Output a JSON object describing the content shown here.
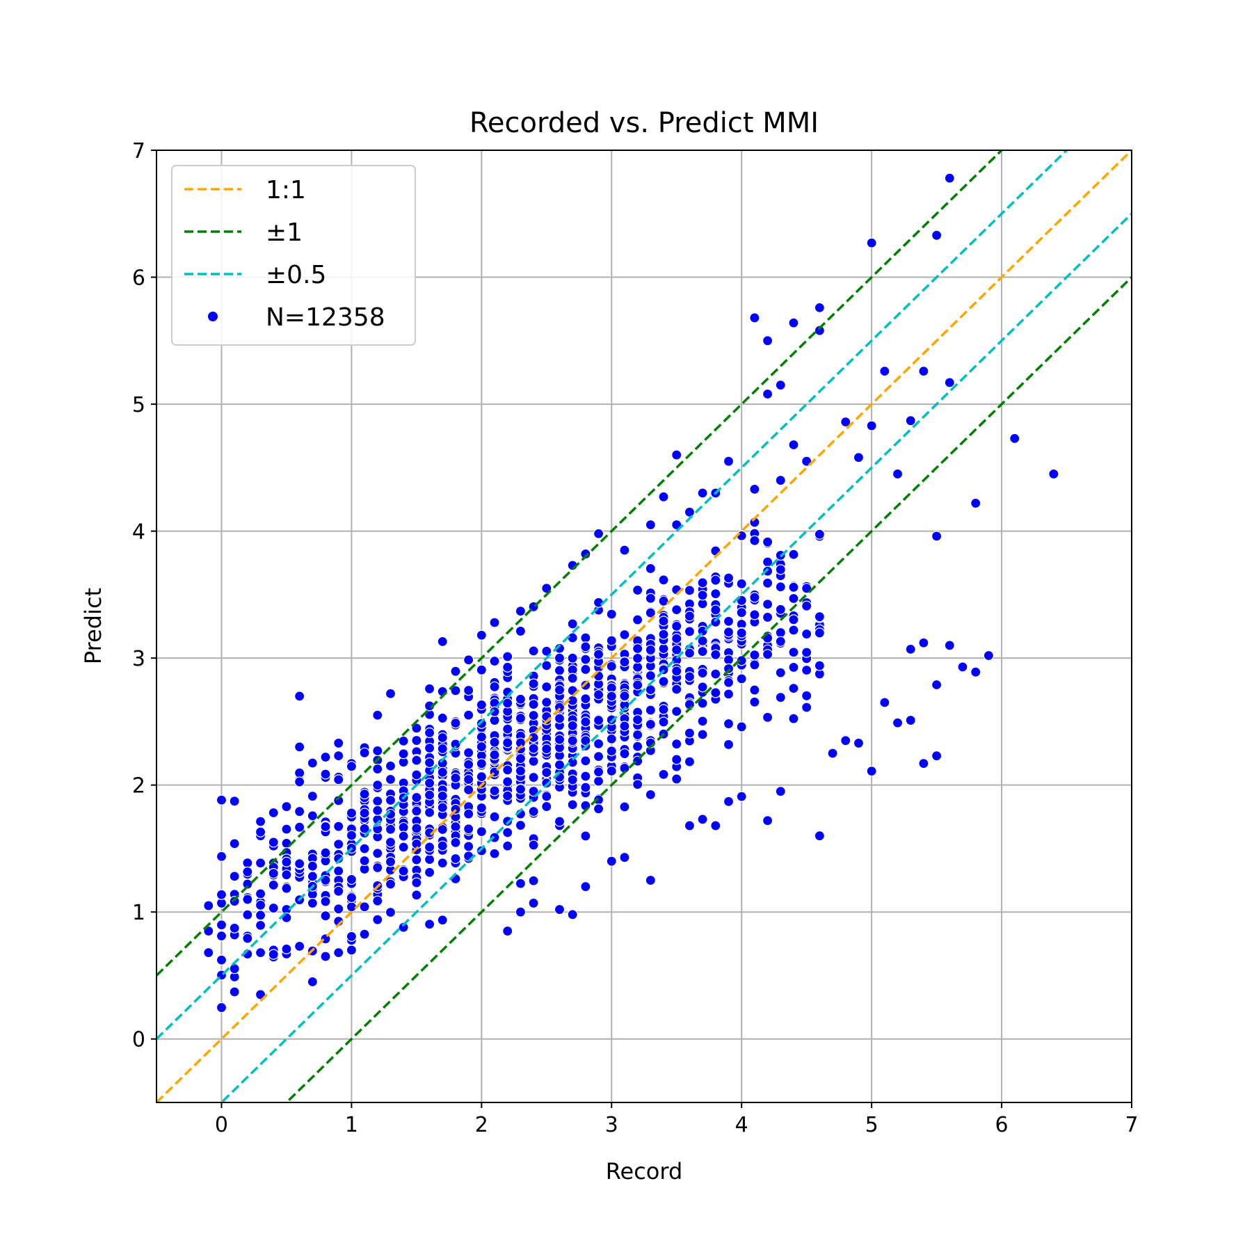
{
  "chart_data": {
    "type": "scatter",
    "title": "Recorded vs. Predict MMI",
    "xlabel": "Record",
    "ylabel": "Predict",
    "xlim": [
      -0.5,
      7
    ],
    "ylim": [
      -0.5,
      7
    ],
    "xticks": [
      "0",
      "1",
      "2",
      "3",
      "4",
      "5",
      "6",
      "7"
    ],
    "yticks": [
      "0",
      "1",
      "2",
      "3",
      "4",
      "5",
      "6",
      "7"
    ],
    "grid": true,
    "legend_position": "top-left",
    "lines": [
      {
        "name": "1:1",
        "offset": 0,
        "color": "#ffa500",
        "style": "dashed"
      },
      {
        "name": "±1",
        "offset": 1,
        "color": "#008000",
        "style": "dashed"
      },
      {
        "name": "±1",
        "offset": -1,
        "color": "#008000",
        "style": "dashed"
      },
      {
        "name": "±0.5",
        "offset": 0.5,
        "color": "#00bfbf",
        "style": "dashed"
      },
      {
        "name": "±0.5",
        "offset": -0.5,
        "color": "#00bfbf",
        "style": "dashed"
      }
    ],
    "legend": [
      {
        "label": "1:1",
        "kind": "line",
        "color": "#ffa500"
      },
      {
        "label": "±1",
        "kind": "line",
        "color": "#008000"
      },
      {
        "label": "±0.5",
        "kind": "line",
        "color": "#00bfbf"
      },
      {
        "label": "N=12358",
        "kind": "marker",
        "color": "#0000ff"
      }
    ],
    "series": [
      {
        "name": "N=12358",
        "color": "#0000ff",
        "points": [
          [
            -0.1,
            0.68
          ],
          [
            -0.1,
            0.85
          ],
          [
            -0.1,
            1.05
          ],
          [
            0.0,
            1.07
          ],
          [
            0.1,
            0.82
          ],
          [
            0.2,
            0.8
          ],
          [
            0.2,
            1.22
          ],
          [
            0.3,
            0.68
          ],
          [
            0.3,
            1.6
          ],
          [
            0.3,
            1.63
          ],
          [
            0.4,
            1.52
          ],
          [
            0.4,
            0.7
          ],
          [
            0.5,
            1.83
          ],
          [
            0.5,
            0.67
          ],
          [
            0.6,
            2.7
          ],
          [
            0.6,
            2.3
          ],
          [
            0.6,
            2.04
          ],
          [
            0.6,
            0.73
          ],
          [
            0.7,
            1.75
          ],
          [
            0.8,
            2.22
          ],
          [
            0.8,
            2.06
          ],
          [
            0.8,
            0.65
          ],
          [
            0.9,
            2.33
          ],
          [
            0.9,
            0.68
          ],
          [
            1.0,
            0.7
          ],
          [
            1.2,
            2.55
          ],
          [
            1.3,
            2.72
          ],
          [
            1.7,
            3.13
          ],
          [
            2.0,
            3.18
          ],
          [
            2.1,
            3.28
          ],
          [
            2.2,
            0.85
          ],
          [
            2.3,
            3.37
          ],
          [
            2.3,
            1.0
          ],
          [
            2.4,
            1.07
          ],
          [
            2.5,
            3.55
          ],
          [
            2.6,
            1.02
          ],
          [
            2.7,
            3.73
          ],
          [
            2.7,
            0.98
          ],
          [
            2.8,
            3.82
          ],
          [
            2.8,
            1.2
          ],
          [
            2.9,
            3.98
          ],
          [
            3.0,
            1.4
          ],
          [
            3.1,
            3.85
          ],
          [
            3.1,
            1.43
          ],
          [
            3.3,
            4.05
          ],
          [
            3.3,
            1.25
          ],
          [
            3.4,
            4.27
          ],
          [
            3.5,
            4.6
          ],
          [
            3.5,
            4.05
          ],
          [
            3.6,
            1.68
          ],
          [
            3.6,
            4.15
          ],
          [
            3.7,
            4.3
          ],
          [
            3.7,
            1.73
          ],
          [
            3.8,
            4.3
          ],
          [
            3.8,
            1.68
          ],
          [
            3.9,
            4.55
          ],
          [
            3.9,
            1.87
          ],
          [
            4.0,
            1.91
          ],
          [
            4.1,
            5.68
          ],
          [
            4.1,
            4.33
          ],
          [
            4.2,
            5.5
          ],
          [
            4.2,
            5.08
          ],
          [
            4.2,
            1.72
          ],
          [
            4.3,
            5.15
          ],
          [
            4.3,
            1.95
          ],
          [
            4.3,
            4.4
          ],
          [
            4.4,
            5.64
          ],
          [
            4.4,
            4.68
          ],
          [
            4.5,
            4.55
          ],
          [
            4.6,
            5.76
          ],
          [
            4.6,
            5.58
          ],
          [
            4.6,
            1.6
          ],
          [
            4.7,
            2.25
          ],
          [
            4.8,
            4.86
          ],
          [
            4.8,
            2.35
          ],
          [
            4.9,
            4.58
          ],
          [
            4.9,
            2.33
          ],
          [
            5.0,
            6.27
          ],
          [
            5.0,
            4.83
          ],
          [
            5.0,
            2.11
          ],
          [
            5.1,
            5.26
          ],
          [
            5.1,
            2.65
          ],
          [
            5.2,
            4.45
          ],
          [
            5.2,
            2.49
          ],
          [
            5.3,
            4.87
          ],
          [
            5.3,
            3.07
          ],
          [
            5.3,
            2.51
          ],
          [
            5.4,
            5.26
          ],
          [
            5.4,
            3.12
          ],
          [
            5.4,
            2.17
          ],
          [
            5.5,
            6.33
          ],
          [
            5.5,
            3.96
          ],
          [
            5.5,
            2.79
          ],
          [
            5.5,
            2.23
          ],
          [
            5.6,
            6.78
          ],
          [
            5.6,
            5.17
          ],
          [
            5.6,
            3.1
          ],
          [
            5.7,
            2.93
          ],
          [
            5.8,
            4.22
          ],
          [
            5.8,
            2.89
          ],
          [
            5.9,
            3.02
          ],
          [
            6.1,
            4.73
          ],
          [
            6.4,
            4.45
          ]
        ]
      }
    ]
  }
}
